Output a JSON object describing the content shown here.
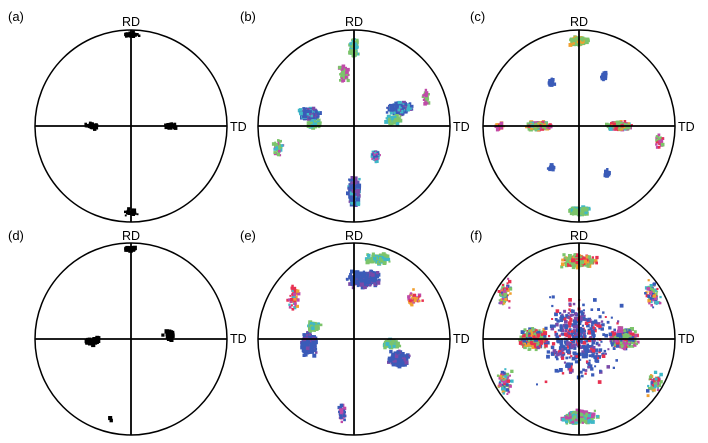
{
  "figure": {
    "panels": [
      {
        "id": "a",
        "label": "(a)",
        "rd_label": "RD",
        "td_label": "TD",
        "style": "mono"
      },
      {
        "id": "b",
        "label": "(b)",
        "rd_label": "RD",
        "td_label": "TD",
        "style": "ipf-sparse"
      },
      {
        "id": "c",
        "label": "(c)",
        "rd_label": "RD",
        "td_label": "TD",
        "style": "ipf-cube"
      },
      {
        "id": "d",
        "label": "(d)",
        "rd_label": "RD",
        "td_label": "TD",
        "style": "mono"
      },
      {
        "id": "e",
        "label": "(e)",
        "rd_label": "RD",
        "td_label": "TD",
        "style": "ipf-rotated"
      },
      {
        "id": "f",
        "label": "(f)",
        "rd_label": "RD",
        "td_label": "TD",
        "style": "ipf-ring"
      }
    ],
    "colors": {
      "mono": "#000000",
      "blue": "#3a5bb8",
      "green": "#7cc46a",
      "cyan": "#3fb8c8",
      "magenta": "#c04aa8",
      "orange": "#f0a030",
      "red": "#e83050",
      "purple": "#7a4aa8"
    }
  }
}
